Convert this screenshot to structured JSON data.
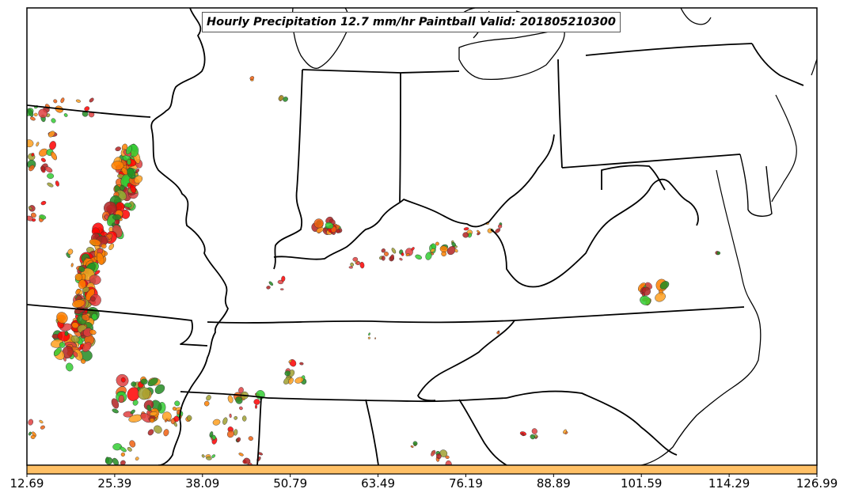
{
  "map": {
    "title": "Hourly Precipitation 12.7 mm/hr Paintball Valid: 201805210300"
  },
  "colorbar": {
    "color": "#ffc066",
    "ticks": [
      "12.69",
      "25.39",
      "38.09",
      "50.79",
      "63.49",
      "76.19",
      "88.89",
      "101.59",
      "114.29",
      "126.99"
    ]
  },
  "paintball_colors": [
    "#ff0000",
    "#ff8000",
    "#ffa020",
    "#32cd32",
    "#228b22",
    "#a0a030",
    "#b22222",
    "#e04040",
    "#f06010"
  ]
}
